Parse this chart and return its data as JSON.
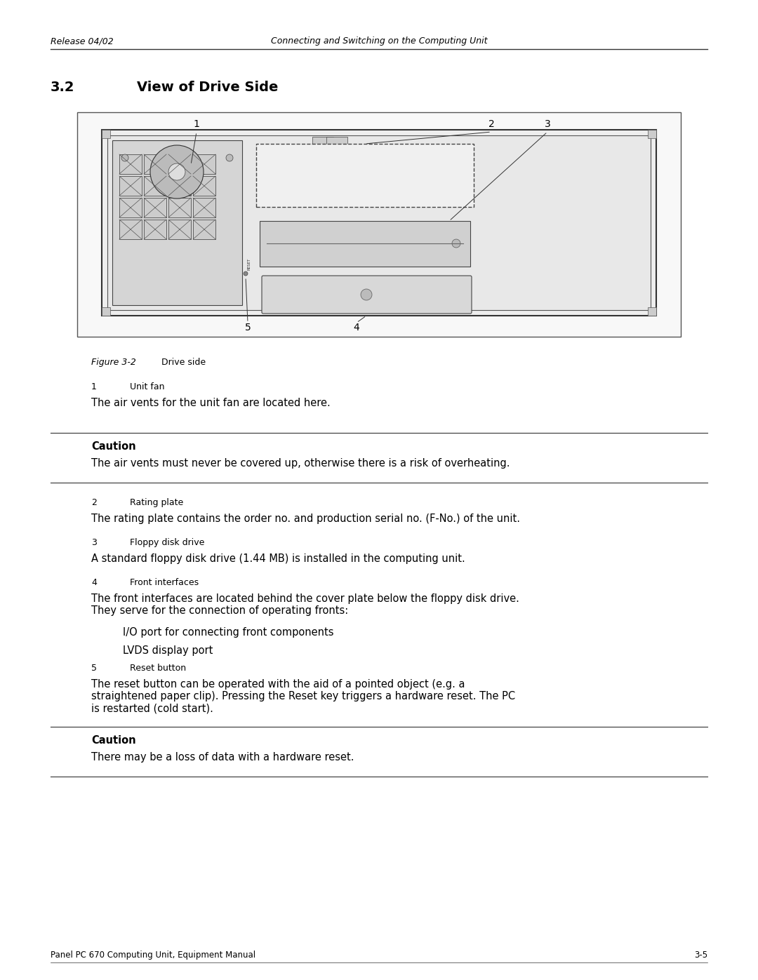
{
  "header_left": "Release 04/02",
  "header_right": "Connecting and Switching on the Computing Unit",
  "section_number": "3.2",
  "section_title": "View of Drive Side",
  "figure_label": "Figure 3-2",
  "figure_caption": "Drive side",
  "footer_left": "Panel PC 670 Computing Unit, Equipment Manual",
  "footer_right": "3-5",
  "callout_labels": [
    "1",
    "2",
    "3",
    "4",
    "5"
  ],
  "items": [
    {
      "num": "1",
      "title": "Unit fan",
      "desc": "The air vents for the unit fan are located here."
    },
    {
      "num": "2",
      "title": "Rating plate",
      "desc": "The rating plate contains the order no. and production serial no. (F-No.) of the unit."
    },
    {
      "num": "3",
      "title": "Floppy disk drive",
      "desc": "A standard floppy disk drive (1.44 MB) is installed in the computing unit."
    },
    {
      "num": "4",
      "title": "Front interfaces",
      "desc": "The front interfaces are located behind the cover plate below the floppy disk drive.\nThey serve for the connection of operating fronts:"
    },
    {
      "num": "5",
      "title": "Reset button",
      "desc": "The reset button can be operated with the aid of a pointed object (e.g. a\nstraightened paper clip). Pressing the Reset key triggers a hardware reset. The PC\nis restarted (cold start)."
    }
  ],
  "front_interface_bullets": [
    "I/O port for connecting front components",
    "LVDS display port"
  ],
  "caution1_title": "Caution",
  "caution1_text": "The air vents must never be covered up, otherwise there is a risk of overheating.",
  "caution2_title": "Caution",
  "caution2_text": "There may be a loss of data with a hardware reset.",
  "bg_color": "#ffffff",
  "text_color": "#000000",
  "line_color": "#000000",
  "box_bg": "#ffffff",
  "box_border": "#888888"
}
